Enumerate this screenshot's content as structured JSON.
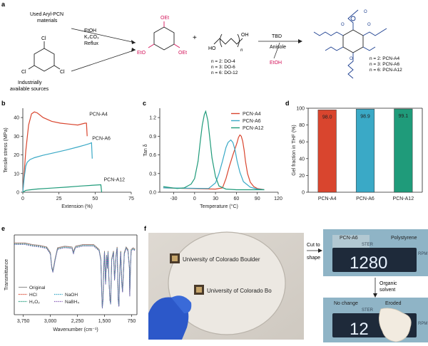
{
  "figure": {
    "panel_a": {
      "letter": "a",
      "source_top": "Used Aryl-PCN",
      "source_top2": "materials",
      "source_bottom": "Industrially",
      "source_bottom2": "available sources",
      "conditions": [
        "EtOH",
        "K₂CO₃",
        "Reflux"
      ],
      "triazine_subs": [
        "OEt",
        "EtO",
        "OEt"
      ],
      "chloro_subs": [
        "Cl",
        "Cl",
        "Cl"
      ],
      "plus": "+",
      "diol_ho": "HO",
      "diol_oh": "OH",
      "diol_n": "n",
      "diol_list": [
        "n = 2: DO-4",
        "n = 3: DO-6",
        "n = 6: DO-12"
      ],
      "catalyst": "TBD",
      "solvent": "Anisole",
      "byproduct": "EtOH",
      "polymer_list": [
        "n = 2: PCN-A4",
        "n = 3: PCN-A6",
        "n = 6: PCN-A12"
      ]
    },
    "panel_b": {
      "letter": "b"
    },
    "panel_c": {
      "letter": "c"
    },
    "panel_d": {
      "letter": "d"
    },
    "panel_e": {
      "letter": "e"
    },
    "panel_f": {
      "letter": "f",
      "logo_text_1": "University of Colorado Boulder",
      "logo_text_2": "University of Colorado Bo",
      "step1": [
        "Cut to",
        "shape"
      ],
      "step2": [
        "Organic",
        "solvent"
      ],
      "label_pcn": "PCN-A6",
      "label_ps": "Polystyrene",
      "label_nochange": "No change",
      "label_eroded": "Eroded",
      "display_top": "1280",
      "display_bottom": "12",
      "ster": "STER",
      "rpm": "RPM"
    }
  },
  "chart_data": [
    {
      "id": "b",
      "type": "line",
      "xlabel": "Extension (%)",
      "ylabel": "Tensile stress (MPa)",
      "xlim": [
        0,
        75
      ],
      "ylim": [
        0,
        45
      ],
      "xticks": [
        0,
        25,
        50,
        75
      ],
      "yticks": [
        0,
        10,
        20,
        30,
        40
      ],
      "series": [
        {
          "name": "PCN-A4",
          "color": "#d9452e",
          "x": [
            0,
            2,
            4,
            6,
            8,
            10,
            14,
            20,
            26,
            32,
            38,
            43,
            44,
            44.5
          ],
          "y": [
            0,
            22,
            36,
            42,
            43,
            42.5,
            40,
            38,
            37,
            36.5,
            36,
            37,
            37,
            30
          ]
        },
        {
          "name": "PCN-A6",
          "color": "#3aa9c6",
          "x": [
            0,
            1,
            2,
            3,
            5,
            8,
            14,
            22,
            30,
            38,
            43,
            46,
            47.5,
            48
          ],
          "y": [
            0,
            8,
            14,
            16,
            17.5,
            18.5,
            19.8,
            21.2,
            22.6,
            24.2,
            25.3,
            26,
            26.5,
            18
          ]
        },
        {
          "name": "PCN-A12",
          "color": "#1f9b7a",
          "x": [
            0,
            2,
            5,
            10,
            20,
            30,
            40,
            50,
            54,
            54.5
          ],
          "y": [
            0,
            1,
            1.3,
            1.7,
            2.2,
            2.7,
            3.3,
            3.8,
            4,
            0
          ]
        }
      ],
      "legend_placement": "inline labels"
    },
    {
      "id": "c",
      "type": "line",
      "xlabel": "Temperature (°C)",
      "ylabel": "Tan δ",
      "xlim": [
        -50,
        120
      ],
      "ylim": [
        0,
        1.35
      ],
      "xticks": [
        -30,
        0,
        30,
        60,
        90,
        120
      ],
      "yticks": [
        0.0,
        0.3,
        0.6,
        0.9,
        1.2
      ],
      "series": [
        {
          "name": "PCN-A4",
          "color": "#d9452e",
          "x": [
            -45,
            30,
            40,
            45,
            50,
            55,
            58,
            61,
            63,
            65,
            67,
            69,
            71,
            73,
            76,
            80,
            85,
            90,
            95,
            100
          ],
          "y": [
            0.07,
            0.05,
            0.07,
            0.22,
            0.42,
            0.6,
            0.7,
            0.8,
            0.88,
            0.92,
            0.9,
            0.82,
            0.68,
            0.5,
            0.3,
            0.16,
            0.09,
            0.06,
            0.05,
            0.04
          ]
        },
        {
          "name": "PCN-A6",
          "color": "#3aa9c6",
          "x": [
            -45,
            20,
            30,
            35,
            40,
            45,
            48,
            52,
            55,
            58,
            61,
            65,
            70,
            80,
            90,
            100
          ],
          "y": [
            0.07,
            0.06,
            0.15,
            0.3,
            0.5,
            0.72,
            0.8,
            0.84,
            0.8,
            0.68,
            0.5,
            0.32,
            0.17,
            0.08,
            0.05,
            0.04
          ]
        },
        {
          "name": "PCN-A12",
          "color": "#1f9b7a",
          "x": [
            -45,
            -25,
            -15,
            -5,
            0,
            5,
            8,
            11,
            14,
            16,
            19,
            22,
            25,
            30,
            35,
            45,
            60,
            80,
            100
          ],
          "y": [
            0.09,
            0.06,
            0.07,
            0.13,
            0.22,
            0.5,
            0.8,
            1.08,
            1.25,
            1.3,
            1.15,
            0.85,
            0.55,
            0.25,
            0.1,
            0.05,
            0.04,
            0.04,
            0.04
          ]
        }
      ],
      "legend_placement": "top-right"
    },
    {
      "id": "d",
      "type": "bar",
      "ylabel": "Gel fraction in THF (%)",
      "ylim": [
        0,
        100
      ],
      "yticks": [
        0,
        20,
        40,
        60,
        80,
        100
      ],
      "categories": [
        "PCN-A4",
        "PCN-A6",
        "PCN-A12"
      ],
      "values": [
        98.0,
        98.9,
        99.1
      ],
      "value_labels": [
        "98.0",
        "98.9",
        "99.1"
      ],
      "colors": [
        "#d9452e",
        "#3aa9c6",
        "#1f9b7a"
      ]
    },
    {
      "id": "e",
      "type": "line",
      "xlabel": "Wavenumber (cm⁻¹)",
      "ylabel": "Transmittance",
      "xlim": [
        4000,
        600
      ],
      "xticks": [
        3750,
        3000,
        2250,
        1500,
        750
      ],
      "xtick_labels": [
        "3,750",
        "3,000",
        "2,250",
        "1,500",
        "750"
      ],
      "series": [
        {
          "name": "Original",
          "color": "#999999"
        },
        {
          "name": "HCl",
          "color": "#d9452e"
        },
        {
          "name": "NaOH",
          "color": "#3aa9c6"
        },
        {
          "name": "H₂O₂",
          "color": "#1f9b7a"
        },
        {
          "name": "NaBH₄",
          "color": "#8a5fb8"
        }
      ],
      "spectrum": {
        "x": [
          4000,
          3700,
          3500,
          3300,
          3100,
          3000,
          2960,
          2930,
          2900,
          2870,
          2800,
          2600,
          2400,
          2360,
          2340,
          2300,
          2100,
          1900,
          1800,
          1700,
          1650,
          1600,
          1580,
          1560,
          1540,
          1520,
          1500,
          1470,
          1440,
          1420,
          1400,
          1380,
          1350,
          1330,
          1300,
          1250,
          1220,
          1180,
          1150,
          1120,
          1100,
          1080,
          1050,
          1020,
          1000,
          950,
          900,
          850,
          810,
          800,
          780,
          760,
          700,
          650
        ],
        "y": [
          0.9,
          0.9,
          0.88,
          0.87,
          0.85,
          0.78,
          0.6,
          0.55,
          0.62,
          0.7,
          0.84,
          0.86,
          0.85,
          0.78,
          0.82,
          0.86,
          0.88,
          0.88,
          0.88,
          0.84,
          0.82,
          0.7,
          0.35,
          0.1,
          0.2,
          0.6,
          0.8,
          0.4,
          0.75,
          0.6,
          0.8,
          0.5,
          0.2,
          0.15,
          0.7,
          0.8,
          0.45,
          0.75,
          0.85,
          0.2,
          0.12,
          0.5,
          0.8,
          0.4,
          0.3,
          0.78,
          0.85,
          0.82,
          0.6,
          0.25,
          0.6,
          0.82,
          0.84,
          0.82
        ]
      },
      "legend_placement": "bottom-left"
    }
  ]
}
